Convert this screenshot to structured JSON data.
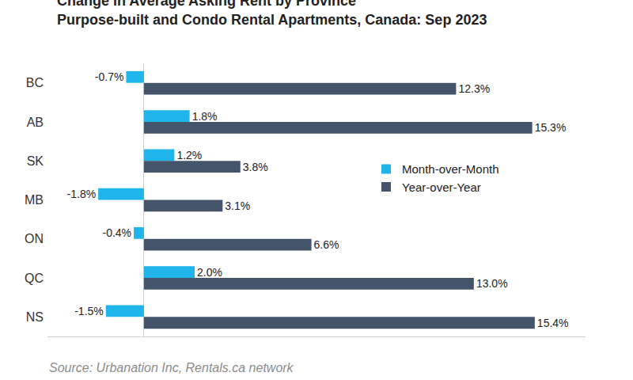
{
  "chart_data": {
    "type": "bar",
    "title": "Change in Average Asking Rent by Province",
    "subtitle": "Purpose-built and Condo Rental Apartments, Canada: Sep 2023",
    "source": "Source: Urbanation Inc, Rentals.ca network",
    "orientation": "horizontal",
    "categories": [
      "BC",
      "AB",
      "SK",
      "MB",
      "ON",
      "QC",
      "NS"
    ],
    "series": [
      {
        "name": "Month-over-Month",
        "color": "#1fb5ea",
        "values": [
          -0.7,
          1.8,
          1.2,
          -1.8,
          -0.4,
          2.0,
          -1.5
        ],
        "value_labels": [
          "-0.7%",
          "1.8%",
          "1.2%",
          "-1.8%",
          "-0.4%",
          "2.0%",
          "-1.5%"
        ]
      },
      {
        "name": "Year-over-Year",
        "color": "#44546a",
        "values": [
          12.3,
          15.3,
          3.8,
          3.1,
          6.6,
          13.0,
          15.4
        ],
        "value_labels": [
          "12.3%",
          "15.3%",
          "3.8%",
          "3.1%",
          "6.6%",
          "13.0%",
          "15.4%"
        ]
      }
    ],
    "xlim": [
      -3.8,
      17.4
    ],
    "xticks": [
      0
    ],
    "grid": true,
    "legend": "right",
    "data_labels": true,
    "tick_labels": "y"
  }
}
